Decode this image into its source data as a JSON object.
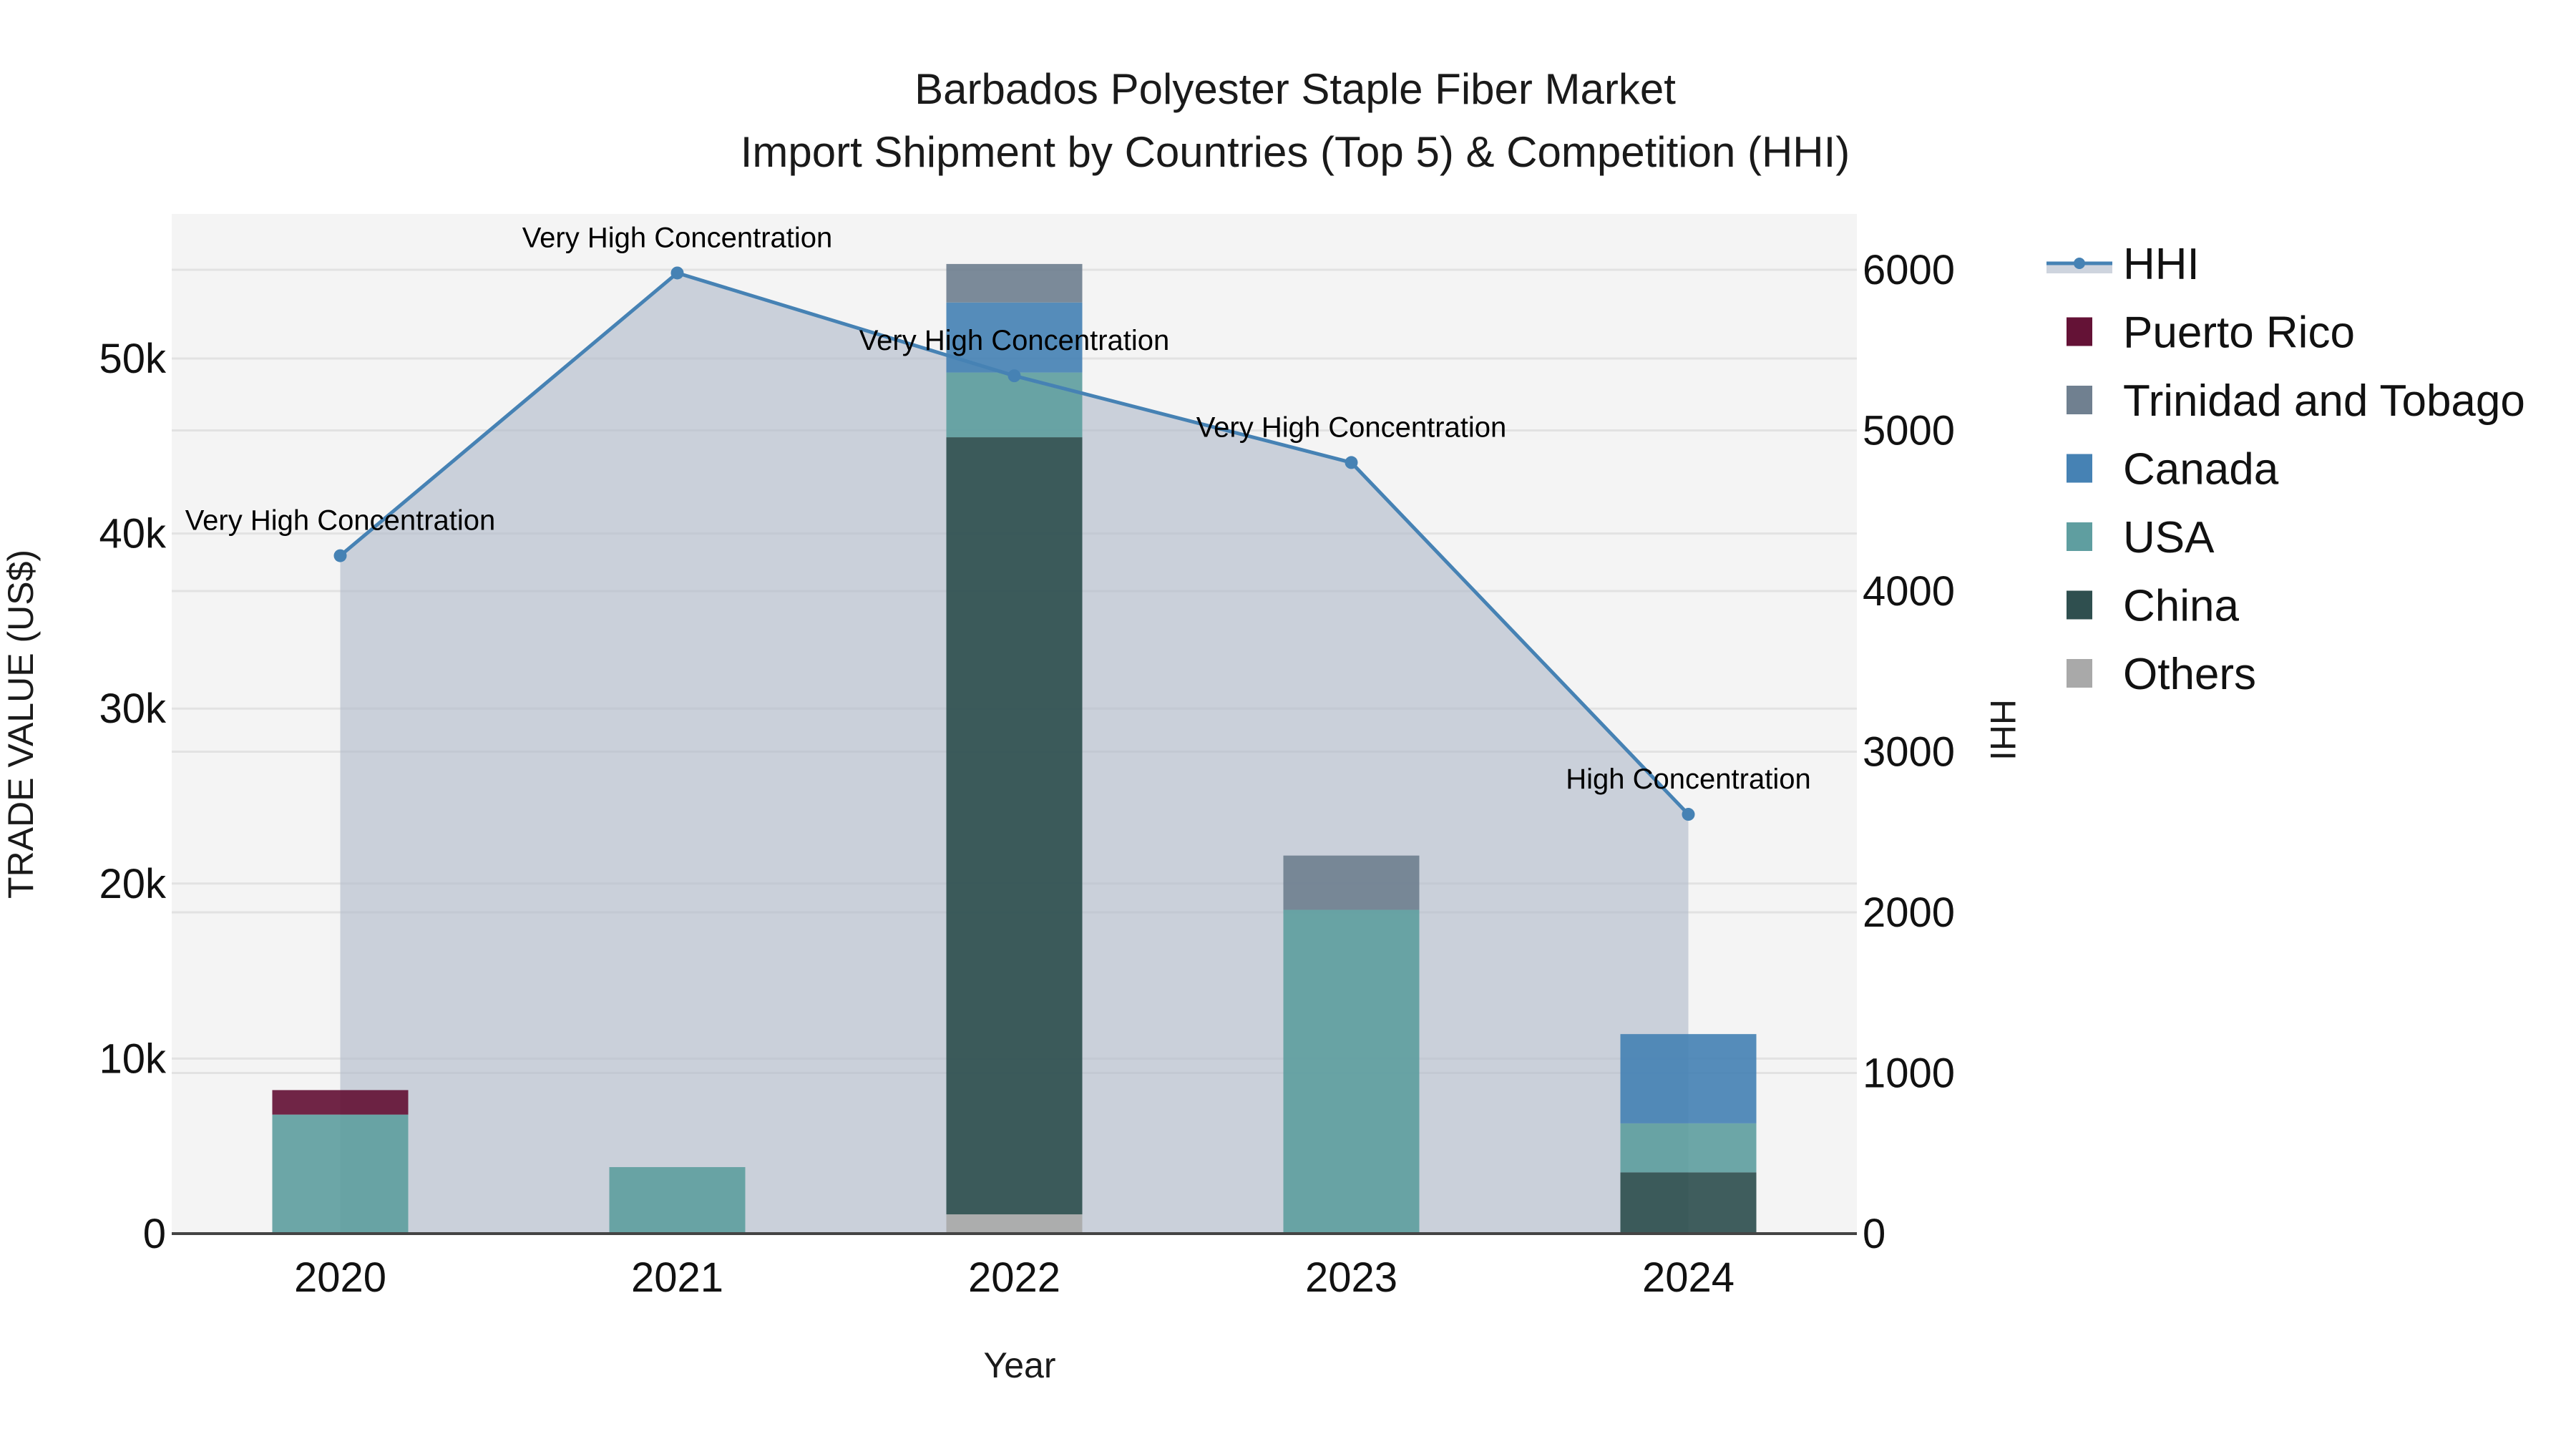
{
  "title": {
    "line1": "Barbados Polyester Staple Fiber Market",
    "line2": "Import Shipment by Countries (Top 5) & Competition (HHI)"
  },
  "axes": {
    "x_title": "Year",
    "y_left_title": "TRADE VALUE (US$)",
    "y_right_title": "HHI",
    "y_left_ticks": [
      "0",
      "10k",
      "20k",
      "30k",
      "40k",
      "50k"
    ],
    "y_right_ticks": [
      "0",
      "1000",
      "2000",
      "3000",
      "4000",
      "5000",
      "6000"
    ]
  },
  "legend": {
    "items": [
      {
        "label": "HHI",
        "type": "line",
        "color": "#4682B4"
      },
      {
        "label": "Puerto Rico",
        "type": "box",
        "color": "#641236"
      },
      {
        "label": "Trinidad and Tobago",
        "type": "box",
        "color": "#708090"
      },
      {
        "label": "Canada",
        "type": "box",
        "color": "#4682B4"
      },
      {
        "label": "USA",
        "type": "box",
        "color": "#5F9EA0"
      },
      {
        "label": "China",
        "type": "box",
        "color": "#2F4F4F"
      },
      {
        "label": "Others",
        "type": "box",
        "color": "#A9A9A9"
      }
    ]
  },
  "colors": {
    "plot_bg": "#F4F4F4",
    "grid": "#E2E2E2",
    "hhi_line": "#4682B4",
    "hhi_fill": "rgba(176,186,201,0.62)",
    "axis_line": "#444444"
  },
  "chart_data": {
    "type": "bar",
    "title": "Barbados Polyester Staple Fiber Market — Import Shipment by Countries (Top 5) & Competition (HHI)",
    "xlabel": "Year",
    "ylabel": "TRADE VALUE (US$)",
    "y2label": "HHI",
    "categories": [
      "2020",
      "2021",
      "2022",
      "2023",
      "2024"
    ],
    "ylim": [
      0,
      57300
    ],
    "y2lim": [
      0,
      6300
    ],
    "barmode": "stack",
    "series": [
      {
        "name": "Others",
        "color": "#A9A9A9",
        "values": [
          0,
          0,
          1100,
          0,
          0
        ]
      },
      {
        "name": "China",
        "color": "#2F4F4F",
        "values": [
          0,
          0,
          44400,
          0,
          3500
        ]
      },
      {
        "name": "USA",
        "color": "#5F9EA0",
        "values": [
          6800,
          3800,
          3700,
          18500,
          2800
        ]
      },
      {
        "name": "Canada",
        "color": "#4682B4",
        "values": [
          0,
          0,
          4000,
          0,
          5100
        ]
      },
      {
        "name": "Trinidad and Tobago",
        "color": "#708090",
        "values": [
          0,
          0,
          2200,
          3100,
          0
        ]
      },
      {
        "name": "Puerto Rico",
        "color": "#641236",
        "values": [
          1400,
          0,
          0,
          0,
          0
        ]
      }
    ],
    "line_series": {
      "name": "HHI",
      "axis": "y2",
      "color": "#4682B4",
      "fill": "tozeroy",
      "values": [
        4220,
        5980,
        5340,
        4800,
        2610
      ],
      "annotations": [
        "Very High Concentration",
        "Very High Concentration",
        "Very High Concentration",
        "Very High Concentration",
        "High Concentration"
      ]
    }
  }
}
